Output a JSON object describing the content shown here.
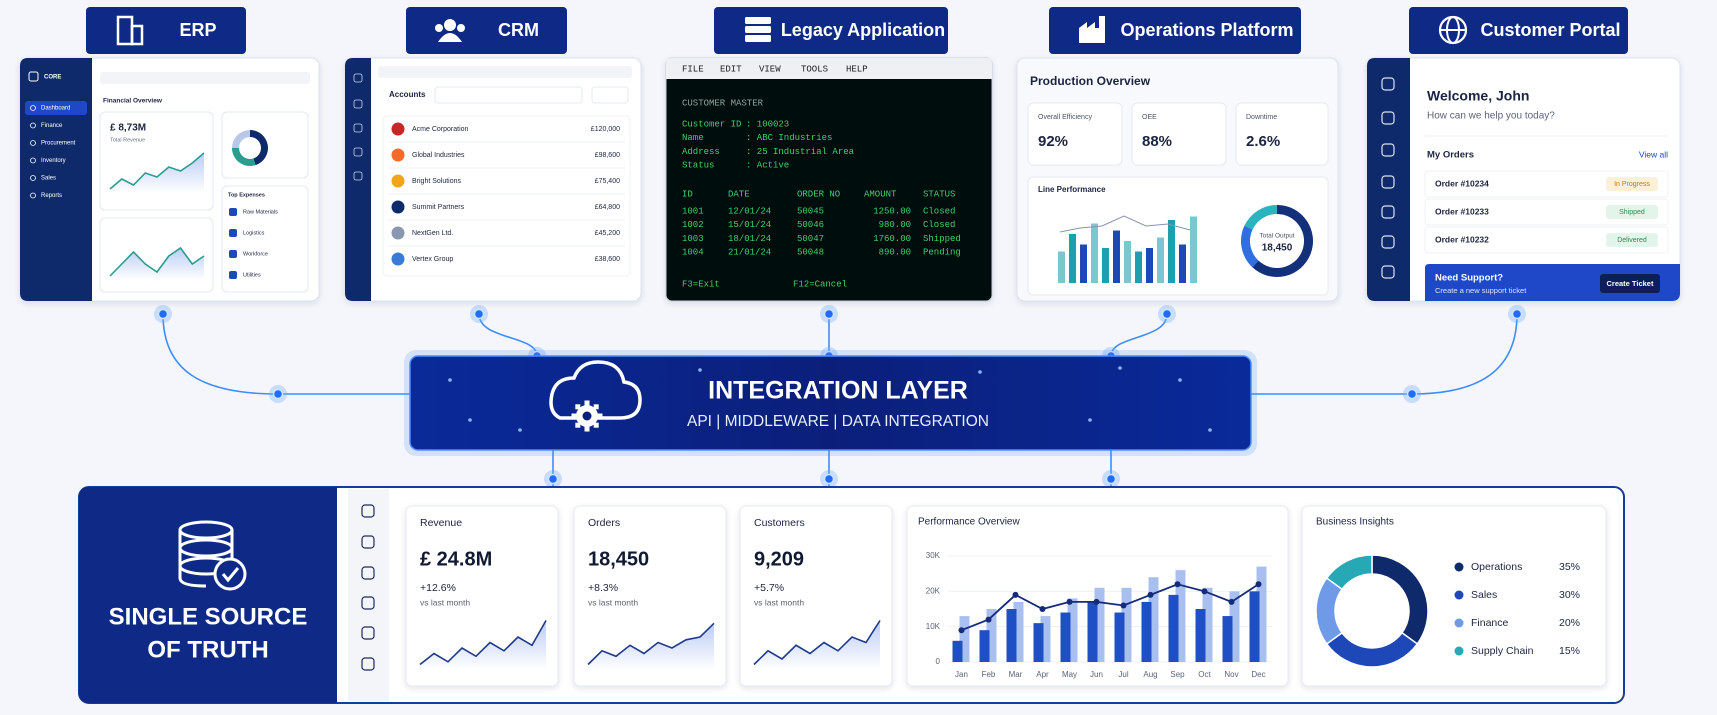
{
  "systems": [
    {
      "label": "ERP"
    },
    {
      "label": "CRM"
    },
    {
      "label": "Legacy Application"
    },
    {
      "label": "Operations Platform"
    },
    {
      "label": "Customer Portal"
    }
  ],
  "erp": {
    "brand": "CORE",
    "nav": [
      "Dashboard",
      "Finance",
      "Procurement",
      "Inventory",
      "Sales",
      "Reports"
    ],
    "section": "Financial Overview",
    "revenue": "£ 8,73M",
    "revenue_label": "Total Revenue",
    "expenses_title": "Top Expenses",
    "expenses": [
      "Raw Materials",
      "Logistics",
      "Workforce",
      "Utilities"
    ]
  },
  "crm": {
    "title": "Accounts",
    "rows": [
      [
        "Acme Corporation",
        "£120,000"
      ],
      [
        "Global Industries",
        "£98,600"
      ],
      [
        "Bright Solutions",
        "£75,400"
      ],
      [
        "Summit Partners",
        "£64,800"
      ],
      [
        "NextGen Ltd.",
        "£45,200"
      ],
      [
        "Vertex Group",
        "£38,600"
      ]
    ]
  },
  "legacy": {
    "menu": [
      "FILE",
      "EDIT",
      "VIEW",
      "TOOLS",
      "HELP"
    ],
    "heading": "CUSTOMER MASTER",
    "fields": [
      [
        "Customer ID",
        ": 100023"
      ],
      [
        "Name",
        ": ABC Industries"
      ],
      [
        "Address",
        ": 25 Industrial Area"
      ],
      [
        "Status",
        ": Active"
      ]
    ],
    "columns": [
      "ID",
      "DATE",
      "ORDER NO",
      "AMOUNT",
      "STATUS"
    ],
    "rows": [
      [
        "1001",
        "12/01/24",
        "50045",
        "1250.00",
        "Closed"
      ],
      [
        "1002",
        "15/01/24",
        "50046",
        "980.00",
        "Closed"
      ],
      [
        "1003",
        "18/01/24",
        "50047",
        "1760.00",
        "Shipped"
      ],
      [
        "1004",
        "21/01/24",
        "50048",
        "890.00",
        "Pending"
      ]
    ],
    "keys": [
      "F3=Exit",
      "F12=Cancel"
    ]
  },
  "operations": {
    "title": "Production Overview",
    "kpis": [
      [
        "Overall Efficiency",
        "92%"
      ],
      [
        "OEE",
        "88%"
      ],
      [
        "Downtime",
        "2.6%"
      ]
    ],
    "chart_title": "Line Performance",
    "total_label": "Total Output",
    "total": "18,450"
  },
  "portal": {
    "greeting": "Welcome, John",
    "prompt": "How can we help you today?",
    "orders_title": "My Orders",
    "view_all": "View all",
    "orders": [
      [
        "Order #10234",
        "In Progress"
      ],
      [
        "Order #10233",
        "Shipped"
      ],
      [
        "Order #10232",
        "Delivered"
      ]
    ],
    "support_title": "Need Support?",
    "support_text": "Create a new support ticket",
    "support_button": "Create Ticket"
  },
  "integration": {
    "title": "INTEGRATION LAYER",
    "subtitle": "API | MIDDLEWARE | DATA INTEGRATION"
  },
  "truth": {
    "title": [
      "SINGLE SOURCE",
      "OF TRUTH"
    ]
  },
  "kpis": [
    {
      "label": "Revenue",
      "value": "£ 24.8M",
      "change": "+12.6%",
      "note": "vs last month"
    },
    {
      "label": "Orders",
      "value": "18,450",
      "change": "+8.3%",
      "note": "vs last month"
    },
    {
      "label": "Customers",
      "value": "9,209",
      "change": "+5.7%",
      "note": "vs last month"
    }
  ],
  "chart_data": [
    {
      "type": "bar",
      "title": "Performance Overview",
      "categories": [
        "Jan",
        "Feb",
        "Mar",
        "Apr",
        "May",
        "Jun",
        "Jul",
        "Aug",
        "Sep",
        "Oct",
        "Nov",
        "Dec"
      ],
      "series": [
        {
          "color": "#a9bff0",
          "values": [
            13000,
            15000,
            17000,
            13000,
            18000,
            21000,
            21000,
            24000,
            26000,
            21000,
            20000,
            27000
          ]
        },
        {
          "color": "#1f4fc4",
          "values": [
            6000,
            9000,
            15000,
            11000,
            14000,
            17000,
            14000,
            17000,
            19000,
            15000,
            13000,
            20000
          ]
        },
        {
          "type": "line",
          "color": "#142a7a",
          "values": [
            9000,
            12000,
            19000,
            15000,
            17000,
            17000,
            16000,
            19000,
            22000,
            20000,
            17000,
            22000
          ]
        }
      ],
      "ylim": [
        0,
        30000
      ],
      "yticks": [
        0,
        {
          "value": 10000,
          "label": "10K"
        },
        {
          "value": 20000,
          "label": "20K"
        },
        {
          "value": 30000,
          "label": "30K"
        }
      ]
    },
    {
      "type": "pie",
      "donut": true,
      "title": "Business Insights",
      "categories": [
        "Operations",
        "Sales",
        "Finance",
        "Supply Chain"
      ],
      "values": [
        35,
        30,
        20,
        15
      ],
      "value_labels": [
        "35%",
        "30%",
        "20%",
        "15%"
      ],
      "colors": [
        "#0f2a6b",
        "#1e48b8",
        "#6f9ae8",
        "#26a9b5"
      ]
    }
  ]
}
